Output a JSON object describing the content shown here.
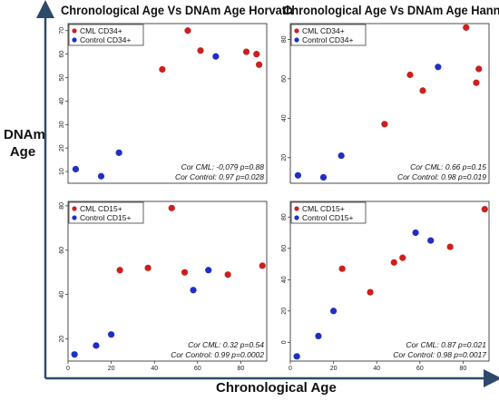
{
  "titles": {
    "left": "Chronological Age Vs DNAm Age Horvath",
    "right": "Chronological Age Vs DNAm Age Hannum"
  },
  "axis_labels": {
    "y_line1": "DNAm",
    "y_line2": "Age",
    "x": "Chronological Age"
  },
  "colors": {
    "cml": "#cc1f1f",
    "control": "#1f2fc4",
    "axis_arrow": "#2e4a6b"
  },
  "chart_data": [
    {
      "type": "scatter",
      "panel": "top-left",
      "xlim": [
        0,
        78
      ],
      "ylim": [
        5,
        73
      ],
      "xticks": [],
      "yticks": [
        10,
        20,
        30,
        40,
        50,
        60,
        70
      ],
      "legend": {
        "placement": "top-left"
      },
      "series": [
        {
          "name": "CML CD34+",
          "color": "#cc1f1f",
          "x": [
            37,
            47,
            52,
            70,
            74,
            75
          ],
          "y": [
            53.5,
            70,
            61.5,
            61,
            60,
            55.5
          ]
        },
        {
          "name": "Control CD34+",
          "color": "#1f2fc4",
          "x": [
            3,
            13,
            20,
            58
          ],
          "y": [
            11,
            8,
            18,
            59
          ]
        }
      ],
      "annotations": [
        "Cor CML: -0,079 p=0.88",
        "Cor Control: 0.97 p=0.028"
      ]
    },
    {
      "type": "scatter",
      "panel": "top-right",
      "xlim": [
        0,
        78
      ],
      "ylim": [
        7,
        88
      ],
      "xticks": [],
      "yticks": [
        20,
        40,
        60,
        80
      ],
      "legend": {
        "placement": "top-left"
      },
      "series": [
        {
          "name": "CML CD34+",
          "color": "#cc1f1f",
          "x": [
            37,
            47,
            52,
            69,
            73,
            74
          ],
          "y": [
            37,
            62,
            54,
            86,
            58,
            65
          ]
        },
        {
          "name": "Control CD34+",
          "color": "#1f2fc4",
          "x": [
            3,
            13,
            20,
            58
          ],
          "y": [
            11,
            10,
            21,
            66
          ]
        }
      ],
      "annotations": [
        "Cor CML: 0.66 p=0.15",
        "Cor Control: 0.98 p=0.019"
      ]
    },
    {
      "type": "scatter",
      "panel": "bottom-left",
      "xlim": [
        0,
        92
      ],
      "ylim": [
        10,
        82
      ],
      "xticks": [
        0,
        20,
        40,
        60,
        80
      ],
      "yticks": [
        20,
        40,
        60,
        80
      ],
      "legend": {
        "placement": "top-left"
      },
      "series": [
        {
          "name": "CML CD15+",
          "color": "#cc1f1f",
          "x": [
            24,
            37,
            48,
            54,
            74,
            90
          ],
          "y": [
            51,
            52,
            79,
            50,
            49,
            53
          ]
        },
        {
          "name": "Control CD15+",
          "color": "#1f2fc4",
          "x": [
            3,
            13,
            20,
            58,
            65
          ],
          "y": [
            13,
            17,
            22,
            42,
            51
          ]
        }
      ],
      "annotations": [
        "Cor CML: 0.32 p=0.54",
        "Cor Control: 0.99 p=0.0002"
      ]
    },
    {
      "type": "scatter",
      "panel": "bottom-right",
      "xlim": [
        0,
        92
      ],
      "ylim": [
        -12,
        90
      ],
      "xticks": [
        0,
        20,
        40,
        60,
        80
      ],
      "yticks": [
        0,
        20,
        40,
        60,
        80
      ],
      "legend": {
        "placement": "top-left"
      },
      "series": [
        {
          "name": "CML CD15+",
          "color": "#cc1f1f",
          "x": [
            24,
            37,
            48,
            52,
            74,
            90
          ],
          "y": [
            47,
            32,
            51,
            54,
            61,
            85
          ]
        },
        {
          "name": "Control CD15+",
          "color": "#1f2fc4",
          "x": [
            3,
            13,
            20,
            58,
            65
          ],
          "y": [
            -9,
            4,
            20,
            70,
            65
          ]
        }
      ],
      "annotations": [
        "Cor CML: 0.87 p=0.021",
        "Cor Control: 0.98 p=0.0017"
      ]
    }
  ]
}
